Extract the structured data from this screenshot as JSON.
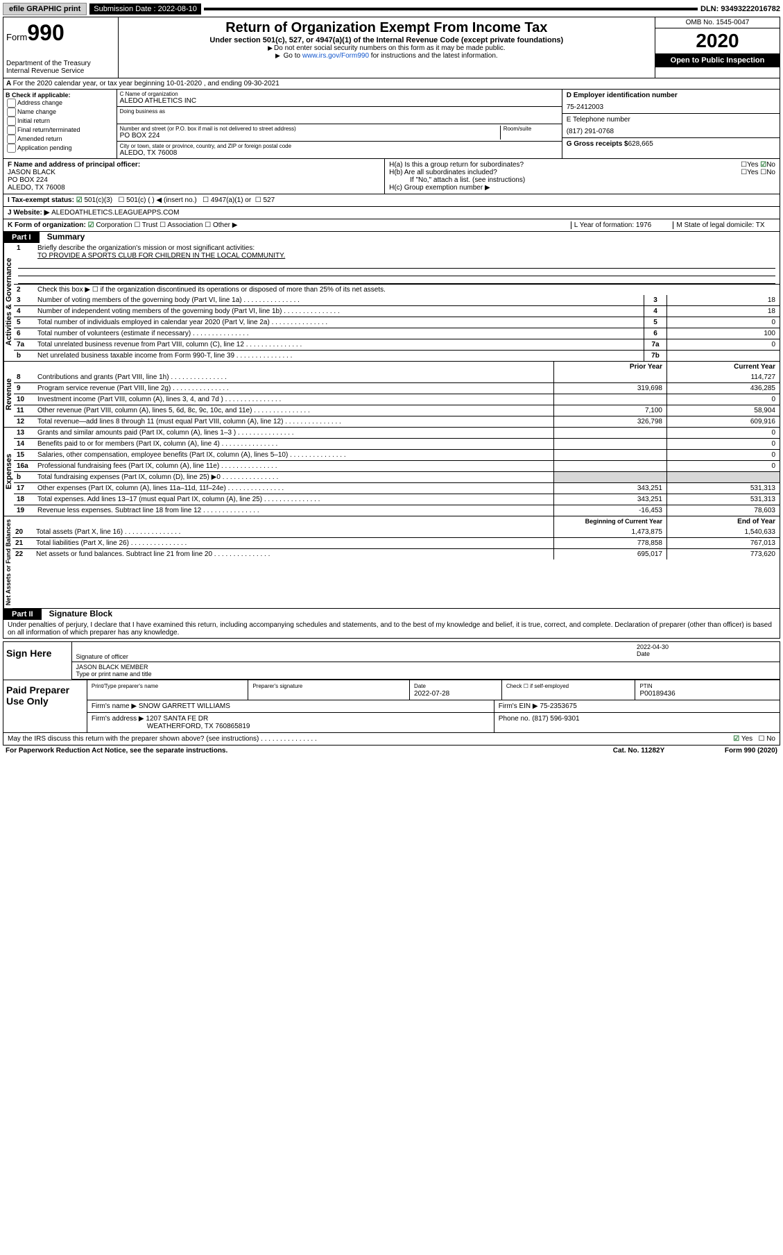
{
  "topbar": {
    "efile": "efile GRAPHIC print",
    "subdate_label": "Submission Date : 2022-08-10",
    "dln": "DLN: 93493222016782"
  },
  "header": {
    "form_label": "Form",
    "form_number": "990",
    "dept": "Department of the Treasury\nInternal Revenue Service",
    "title": "Return of Organization Exempt From Income Tax",
    "sub": "Under section 501(c), 527, or 4947(a)(1) of the Internal Revenue Code (except private foundations)",
    "note1": "Do not enter social security numbers on this form as it may be made public.",
    "note2_pre": "Go to ",
    "note2_link": "www.irs.gov/Form990",
    "note2_post": " for instructions and the latest information.",
    "omb": "OMB No. 1545-0047",
    "year": "2020",
    "inspect": "Open to Public Inspection"
  },
  "row_a": "For the 2020 calendar year, or tax year beginning 10-01-2020    , and ending 09-30-2021",
  "b": {
    "label": "B Check if applicable:",
    "opts": [
      "Address change",
      "Name change",
      "Initial return",
      "Final return/terminated",
      "Amended return",
      "Application pending"
    ]
  },
  "c": {
    "name_label": "C Name of organization",
    "name": "ALEDO ATHLETICS INC",
    "dba_label": "Doing business as",
    "addr_label": "Number and street (or P.O. box if mail is not delivered to street address)",
    "room_label": "Room/suite",
    "addr": "PO BOX 224",
    "city_label": "City or town, state or province, country, and ZIP or foreign postal code",
    "city": "ALEDO, TX  76008"
  },
  "d": {
    "ein_label": "D Employer identification number",
    "ein": "75-2412003",
    "phone_label": "E Telephone number",
    "phone": "(817) 291-0768",
    "gross_label": "G Gross receipts $",
    "gross": "628,665"
  },
  "f": {
    "label": "F  Name and address of principal officer:",
    "name": "JASON BLACK",
    "addr1": "PO BOX 224",
    "addr2": "ALEDO, TX  76008"
  },
  "h": {
    "a": "H(a)  Is this a group return for subordinates?",
    "b": "H(b)  Are all subordinates included?",
    "note": "If \"No,\" attach a list. (see instructions)",
    "c": "H(c)  Group exemption number ▶"
  },
  "i": {
    "label": "I  Tax-exempt status:",
    "opt1": "501(c)(3)",
    "opt2": "501(c) (  ) ◀ (insert no.)",
    "opt3": "4947(a)(1) or",
    "opt4": "527"
  },
  "j": {
    "label": "J  Website: ▶",
    "val": "ALEDOATHLETICS.LEAGUEAPPS.COM"
  },
  "k": {
    "label": "K Form of organization:",
    "corp": "Corporation",
    "trust": "Trust",
    "assoc": "Association",
    "other": "Other ▶",
    "l": "L Year of formation: 1976",
    "m": "M State of legal domicile: TX"
  },
  "part1": {
    "hdr": "Part I",
    "title": "Summary",
    "vlab_gov": "Activities & Governance",
    "vlab_rev": "Revenue",
    "vlab_exp": "Expenses",
    "vlab_net": "Net Assets or Fund Balances",
    "q1": "Briefly describe the organization's mission or most significant activities:",
    "mission": "TO PROVIDE A SPORTS CLUB FOR CHILDREN IN THE LOCAL COMMUNITY.",
    "q2": "Check this box ▶ ☐  if the organization discontinued its operations or disposed of more than 25% of its net assets.",
    "lines_gov": [
      {
        "n": "3",
        "t": "Number of voting members of the governing body (Part VI, line 1a)",
        "c": "3",
        "v": "18"
      },
      {
        "n": "4",
        "t": "Number of independent voting members of the governing body (Part VI, line 1b)",
        "c": "4",
        "v": "18"
      },
      {
        "n": "5",
        "t": "Total number of individuals employed in calendar year 2020 (Part V, line 2a)",
        "c": "5",
        "v": "0"
      },
      {
        "n": "6",
        "t": "Total number of volunteers (estimate if necessary)",
        "c": "6",
        "v": "100"
      },
      {
        "n": "7a",
        "t": "Total unrelated business revenue from Part VIII, column (C), line 12",
        "c": "7a",
        "v": "0"
      },
      {
        "n": "b",
        "t": "Net unrelated business taxable income from Form 990-T, line 39",
        "c": "7b",
        "v": ""
      }
    ],
    "col_prior": "Prior Year",
    "col_current": "Current Year",
    "lines_rev": [
      {
        "n": "8",
        "t": "Contributions and grants (Part VIII, line 1h)",
        "p": "",
        "c": "114,727"
      },
      {
        "n": "9",
        "t": "Program service revenue (Part VIII, line 2g)",
        "p": "319,698",
        "c": "436,285"
      },
      {
        "n": "10",
        "t": "Investment income (Part VIII, column (A), lines 3, 4, and 7d )",
        "p": "",
        "c": "0"
      },
      {
        "n": "11",
        "t": "Other revenue (Part VIII, column (A), lines 5, 6d, 8c, 9c, 10c, and 11e)",
        "p": "7,100",
        "c": "58,904"
      },
      {
        "n": "12",
        "t": "Total revenue—add lines 8 through 11 (must equal Part VIII, column (A), line 12)",
        "p": "326,798",
        "c": "609,916"
      }
    ],
    "lines_exp": [
      {
        "n": "13",
        "t": "Grants and similar amounts paid (Part IX, column (A), lines 1–3 )",
        "p": "",
        "c": "0"
      },
      {
        "n": "14",
        "t": "Benefits paid to or for members (Part IX, column (A), line 4)",
        "p": "",
        "c": "0"
      },
      {
        "n": "15",
        "t": "Salaries, other compensation, employee benefits (Part IX, column (A), lines 5–10)",
        "p": "",
        "c": "0"
      },
      {
        "n": "16a",
        "t": "Professional fundraising fees (Part IX, column (A), line 11e)",
        "p": "",
        "c": "0"
      },
      {
        "n": "b",
        "t": "Total fundraising expenses (Part IX, column (D), line 25) ▶0",
        "p": "shade",
        "c": "shade"
      },
      {
        "n": "17",
        "t": "Other expenses (Part IX, column (A), lines 11a–11d, 11f–24e)",
        "p": "343,251",
        "c": "531,313"
      },
      {
        "n": "18",
        "t": "Total expenses. Add lines 13–17 (must equal Part IX, column (A), line 25)",
        "p": "343,251",
        "c": "531,313"
      },
      {
        "n": "19",
        "t": "Revenue less expenses. Subtract line 18 from line 12",
        "p": "-16,453",
        "c": "78,603"
      }
    ],
    "col_begin": "Beginning of Current Year",
    "col_end": "End of Year",
    "lines_net": [
      {
        "n": "20",
        "t": "Total assets (Part X, line 16)",
        "p": "1,473,875",
        "c": "1,540,633"
      },
      {
        "n": "21",
        "t": "Total liabilities (Part X, line 26)",
        "p": "778,858",
        "c": "767,013"
      },
      {
        "n": "22",
        "t": "Net assets or fund balances. Subtract line 21 from line 20",
        "p": "695,017",
        "c": "773,620"
      }
    ]
  },
  "part2": {
    "hdr": "Part II",
    "title": "Signature Block",
    "decl": "Under penalties of perjury, I declare that I have examined this return, including accompanying schedules and statements, and to the best of my knowledge and belief, it is true, correct, and complete. Declaration of preparer (other than officer) is based on all information of which preparer has any knowledge."
  },
  "sign": {
    "label": "Sign Here",
    "sig_label": "Signature of officer",
    "date": "2022-04-30",
    "date_label": "Date",
    "name": "JASON BLACK MEMBER",
    "name_label": "Type or print name and title"
  },
  "paid": {
    "label": "Paid Preparer Use Only",
    "h1": "Print/Type preparer's name",
    "h2": "Preparer's signature",
    "h3": "Date",
    "date": "2022-07-28",
    "h4": "Check ☐ if self-employed",
    "h5": "PTIN",
    "ptin": "P00189436",
    "firm_label": "Firm's name    ▶",
    "firm": "SNOW GARRETT WILLIAMS",
    "ein_label": "Firm's EIN ▶",
    "ein": "75-2353675",
    "addr_label": "Firm's address ▶",
    "addr1": "1207 SANTA FE DR",
    "addr2": "WEATHERFORD, TX  760865819",
    "phone_label": "Phone no.",
    "phone": "(817) 596-9301"
  },
  "discuss": "May the IRS discuss this return with the preparer shown above? (see instructions)",
  "footer": {
    "l": "For Paperwork Reduction Act Notice, see the separate instructions.",
    "m": "Cat. No. 11282Y",
    "r": "Form 990 (2020)"
  }
}
